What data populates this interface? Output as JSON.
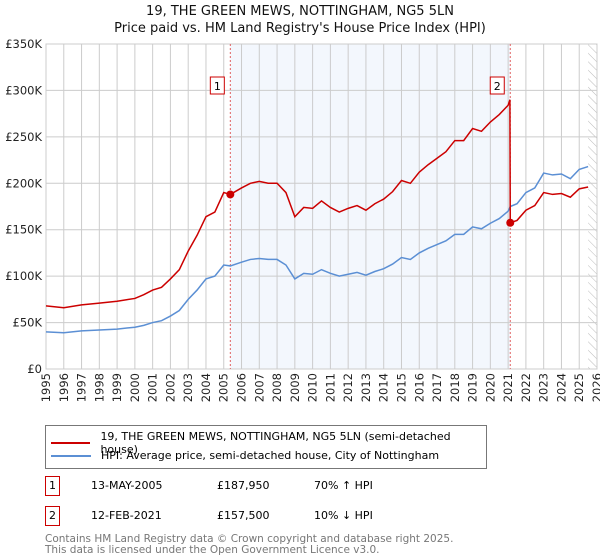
{
  "chart_data": {
    "type": "line",
    "title": "19, THE GREEN MEWS, NOTTINGHAM, NG5 5LN",
    "subtitle": "Price paid vs. HM Land Registry's House Price Index (HPI)",
    "xlim": [
      1995,
      2026
    ],
    "ylim": [
      0,
      350000
    ],
    "y_ticks": [
      0,
      50000,
      100000,
      150000,
      200000,
      250000,
      300000,
      350000
    ],
    "y_tick_labels": [
      "£0",
      "£50K",
      "£100K",
      "£150K",
      "£200K",
      "£250K",
      "£300K",
      "£350K"
    ],
    "x_tick_labels": [
      "1995",
      "1996",
      "1997",
      "1998",
      "1999",
      "2000",
      "2001",
      "2002",
      "2003",
      "2004",
      "2005",
      "2006",
      "2007",
      "2008",
      "2009",
      "2010",
      "2011",
      "2012",
      "2013",
      "2014",
      "2015",
      "2016",
      "2017",
      "2018",
      "2019",
      "2020",
      "2021",
      "2022",
      "2023",
      "2024",
      "2025",
      "2026"
    ],
    "grid": true,
    "shaded_range": [
      2005.37,
      2021.12
    ],
    "hatched_from": 2025.5,
    "series": [
      {
        "name": "19, THE GREEN MEWS, NOTTINGHAM, NG5 5LN (semi-detached house)",
        "color": "#cc0000",
        "x": [
          1995,
          1996,
          1997,
          1998,
          1999,
          2000,
          2000.5,
          2001,
          2001.5,
          2002,
          2002.5,
          2003,
          2003.5,
          2004,
          2004.5,
          2005,
          2005.37,
          2006,
          2006.5,
          2007,
          2007.5,
          2008,
          2008.5,
          2009,
          2009.5,
          2010,
          2010.5,
          2011,
          2011.5,
          2012,
          2012.5,
          2013,
          2013.5,
          2014,
          2014.5,
          2015,
          2015.5,
          2016,
          2016.5,
          2017,
          2017.5,
          2018,
          2018.5,
          2019,
          2019.5,
          2020,
          2020.5,
          2021,
          2021.1,
          2021.12,
          2021.5,
          2022,
          2022.5,
          2023,
          2023.5,
          2024,
          2024.5,
          2025,
          2025.5
        ],
        "y": [
          68,
          66,
          69,
          71,
          73,
          76,
          80,
          85,
          88,
          97,
          107,
          127,
          144,
          164,
          169,
          190,
          188,
          195,
          200,
          202,
          200,
          200,
          190,
          164,
          174,
          173,
          181,
          174,
          169,
          173,
          176,
          171,
          178,
          183,
          191,
          203,
          200,
          212,
          220,
          227,
          234,
          246,
          246,
          259,
          256,
          266,
          274,
          284,
          290,
          157.5,
          160,
          171,
          176,
          190,
          188,
          189,
          185,
          194,
          196
        ]
      },
      {
        "name": "HPI: Average price, semi-detached house, City of Nottingham",
        "color": "#5b8fd4",
        "x": [
          1995,
          1996,
          1997,
          1998,
          1999,
          2000,
          2000.5,
          2001,
          2001.5,
          2002,
          2002.5,
          2003,
          2003.5,
          2004,
          2004.5,
          2005,
          2005.37,
          2006,
          2006.5,
          2007,
          2007.5,
          2008,
          2008.5,
          2009,
          2009.5,
          2010,
          2010.5,
          2011,
          2011.5,
          2012,
          2012.5,
          2013,
          2013.5,
          2014,
          2014.5,
          2015,
          2015.5,
          2016,
          2016.5,
          2017,
          2017.5,
          2018,
          2018.5,
          2019,
          2019.5,
          2020,
          2020.5,
          2021,
          2021.12,
          2021.5,
          2022,
          2022.5,
          2023,
          2023.5,
          2024,
          2024.5,
          2025,
          2025.5
        ],
        "y": [
          40,
          39,
          41,
          42,
          43,
          45,
          47,
          50,
          52,
          57,
          63,
          75,
          85,
          97,
          100,
          112,
          111,
          115,
          118,
          119,
          118,
          118,
          112,
          97,
          103,
          102,
          107,
          103,
          100,
          102,
          104,
          101,
          105,
          108,
          113,
          120,
          118,
          125,
          130,
          134,
          138,
          145,
          145,
          153,
          151,
          157,
          162,
          170,
          175,
          178,
          190,
          195,
          211,
          209,
          210,
          205,
          215,
          218
        ]
      }
    ],
    "y_units": "£K",
    "annotations": [
      {
        "label": "1",
        "x": 2005.37,
        "y": 187950,
        "date": "13-MAY-2005",
        "price": "£187,950",
        "hpi_diff": "70% ↑ HPI"
      },
      {
        "label": "2",
        "x": 2021.12,
        "y": 157500,
        "date": "12-FEB-2021",
        "price": "£157,500",
        "hpi_diff": "10% ↓ HPI"
      }
    ]
  },
  "footer": [
    "Contains HM Land Registry data © Crown copyright and database right 2025.",
    "This data is licensed under the Open Government Licence v3.0."
  ]
}
